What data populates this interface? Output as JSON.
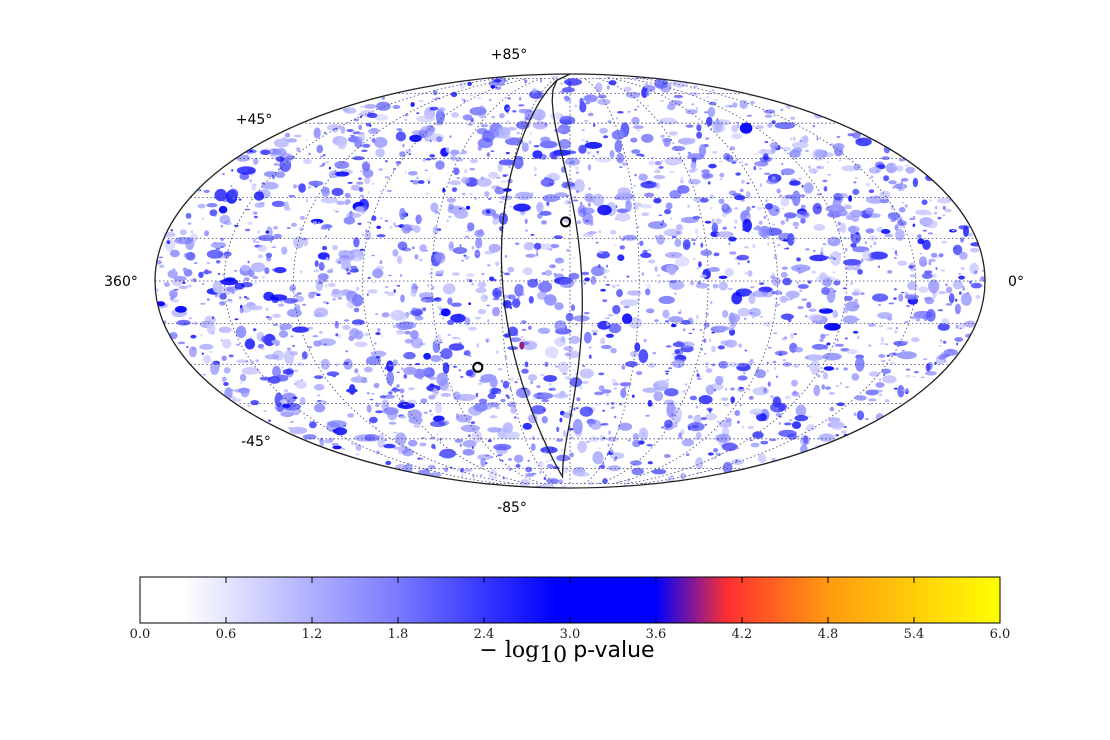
{
  "chart_data": {
    "type": "heatmap",
    "projection": "mollweide",
    "title": "",
    "grid": true,
    "lat_labels": [
      "+85°",
      "+45°",
      "-45°",
      "-85°"
    ],
    "lon_labels": [
      "360°",
      "0°"
    ],
    "graticule_lat_deg": [
      -75,
      -60,
      -45,
      -30,
      -15,
      0,
      15,
      30,
      45,
      60,
      75
    ],
    "graticule_lon_deg": [
      -150,
      -120,
      -90,
      -60,
      -30,
      0,
      30,
      60,
      90,
      120,
      150
    ],
    "markers": [
      {
        "lon_deg": -2,
        "lat_deg": 21
      },
      {
        "lon_deg": -44,
        "lat_deg": -31
      }
    ],
    "boundary_curve": true,
    "hotspot": {
      "lon_deg": -22,
      "lat_deg": -23,
      "value": 3.9
    },
    "colorbar": {
      "label_math": "− log",
      "label_sub": "10",
      "label_text": "p-value",
      "range": [
        0.0,
        6.0
      ],
      "ticks": [
        "0.0",
        "0.6",
        "1.2",
        "1.8",
        "2.4",
        "3.0",
        "3.6",
        "4.2",
        "4.8",
        "5.4",
        "6.0"
      ],
      "colors": [
        {
          "v": 0.0,
          "c": "#ffffff"
        },
        {
          "v": 0.3,
          "c": "#ffffff"
        },
        {
          "v": 1.8,
          "c": "#7a7aff"
        },
        {
          "v": 2.9,
          "c": "#0000ff"
        },
        {
          "v": 3.6,
          "c": "#0000ff"
        },
        {
          "v": 4.1,
          "c": "#ff3030"
        },
        {
          "v": 4.8,
          "c": "#ff9a10"
        },
        {
          "v": 6.0,
          "c": "#ffff00"
        }
      ]
    }
  }
}
